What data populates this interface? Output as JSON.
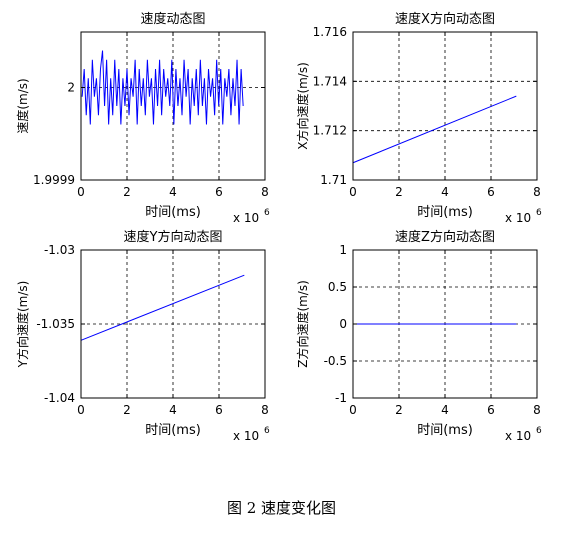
{
  "caption": "图 2  速度变化图",
  "colors": {
    "series": "#0000ff",
    "axes": "#000000",
    "grid": "#000000",
    "background": "#ffffff"
  },
  "chart_data": [
    {
      "type": "line",
      "title": "速度动态图",
      "xlabel": "时间(ms)",
      "ylabel": "速度(m/s)",
      "x_multiplier_label": "x 10",
      "x_multiplier_exp": "6",
      "xlim": [
        0,
        8
      ],
      "ylim": [
        1.9999,
        2.00006
      ],
      "xticks": [
        "0",
        "2",
        "4",
        "6",
        "8"
      ],
      "yticks": [
        {
          "value": 1.9999,
          "label": "1.9999"
        },
        {
          "value": 2.0,
          "label": "2"
        }
      ],
      "grid": true,
      "series": [
        {
          "x_start": 0.05,
          "x_end": 7.05,
          "values": [
            1.99999,
            2.00002,
            1.99997,
            2.00001,
            1.99996,
            2.00003,
            1.99999,
            2.00001,
            1.99997,
            2.00002,
            2.00004,
            1.99998,
            2.00003,
            1.99996,
            2.00001,
            1.99997,
            2.00003,
            1.99998,
            2.00002,
            1.99996,
            2.00001,
            1.99998,
            2.00002,
            1.99997,
            2.00001,
            1.99999,
            2.00003,
            1.99996,
            2.00002,
            1.99998,
            2.00001,
            1.99997,
            2.00003,
            1.99999,
            2.00001,
            1.99996,
            2.00002,
            1.99998,
            2.00003,
            1.99997,
            2.00002,
            1.99999,
            2.00001,
            1.99998,
            2.00003,
            1.99996,
            2.00002,
            1.99998,
            2.00001,
            1.99997,
            2.00003,
            1.99999,
            2.00002,
            1.99996,
            2.00001,
            1.99998,
            2.00002,
            1.99997,
            2.00003,
            1.99998,
            2.00001,
            1.99996,
            2.00002,
            1.99999,
            2.00001,
            1.99997,
            2.00003,
            1.99998,
            2.00002,
            1.99996,
            2.00001,
            1.99999,
            2.00002,
            1.99997,
            2.00001,
            1.99998,
            2.00003,
            1.99996,
            2.00002,
            1.99998
          ]
        }
      ]
    },
    {
      "type": "line",
      "title": "速度X方向动态图",
      "xlabel": "时间(ms)",
      "ylabel": "X方向速度(m/s)",
      "x_multiplier_label": "x 10",
      "x_multiplier_exp": "6",
      "xlim": [
        0,
        8
      ],
      "ylim": [
        1.71,
        1.716
      ],
      "xticks": [
        "0",
        "2",
        "4",
        "6",
        "8"
      ],
      "yticks": [
        {
          "value": 1.71,
          "label": "1.71"
        },
        {
          "value": 1.712,
          "label": "1.712"
        },
        {
          "value": 1.714,
          "label": "1.714"
        },
        {
          "value": 1.716,
          "label": "1.716"
        }
      ],
      "grid": true,
      "series": [
        {
          "x": [
            0,
            7.1
          ],
          "y": [
            1.7107,
            1.7134
          ]
        }
      ]
    },
    {
      "type": "line",
      "title": "速度Y方向动态图",
      "xlabel": "时间(ms)",
      "ylabel": "Y方向速度(m/s)",
      "x_multiplier_label": "x 10",
      "x_multiplier_exp": "6",
      "xlim": [
        0,
        8
      ],
      "ylim": [
        -1.04,
        -1.03
      ],
      "xticks": [
        "0",
        "2",
        "4",
        "6",
        "8"
      ],
      "yticks": [
        {
          "value": -1.04,
          "label": "-1.04"
        },
        {
          "value": -1.035,
          "label": "-1.035"
        },
        {
          "value": -1.03,
          "label": "-1.03"
        }
      ],
      "grid": true,
      "series": [
        {
          "x": [
            0,
            7.1
          ],
          "y": [
            -1.0361,
            -1.0317
          ]
        }
      ]
    },
    {
      "type": "line",
      "title": "速度Z方向动态图",
      "xlabel": "时间(ms)",
      "ylabel": "Z方向速度(m/s)",
      "x_multiplier_label": "x 10",
      "x_multiplier_exp": "6",
      "xlim": [
        0,
        8
      ],
      "ylim": [
        -1,
        1
      ],
      "xticks": [
        "0",
        "2",
        "4",
        "6",
        "8"
      ],
      "yticks": [
        {
          "value": -1,
          "label": "-1"
        },
        {
          "value": -0.5,
          "label": "-0.5"
        },
        {
          "value": 0,
          "label": "0"
        },
        {
          "value": 0.5,
          "label": "0.5"
        },
        {
          "value": 1,
          "label": "1"
        }
      ],
      "grid": true,
      "series": [
        {
          "x": [
            0,
            7.1
          ],
          "y": [
            0,
            0
          ]
        }
      ]
    }
  ]
}
